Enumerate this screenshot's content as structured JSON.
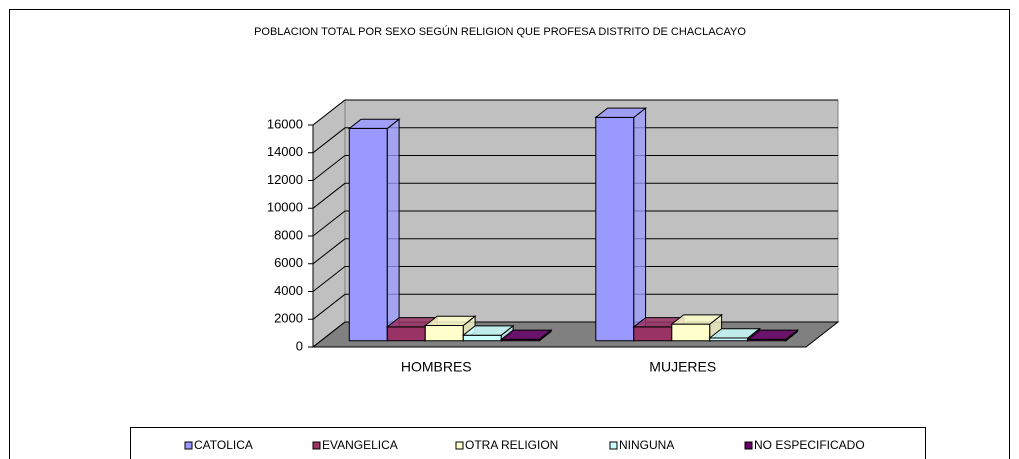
{
  "chart_data": {
    "type": "bar3d",
    "title": "POBLACION TOTAL POR SEXO SEGÚN RELIGION QUE PROFESA DISTRITO DE CHACLACAYO",
    "categories": [
      "HOMBRES",
      "MUJERES"
    ],
    "series": [
      {
        "name": "CATOLICA",
        "color": "#9999ff",
        "values": [
          15300,
          16100
        ]
      },
      {
        "name": "EVANGELICA",
        "color": "#993366",
        "values": [
          1000,
          1000
        ]
      },
      {
        "name": "OTRA RELIGION",
        "color": "#ffffcc",
        "values": [
          1100,
          1200
        ]
      },
      {
        "name": "NINGUNA",
        "color": "#ccffff",
        "values": [
          400,
          200
        ]
      },
      {
        "name": "NO ESPECIFICADO",
        "color": "#660066",
        "values": [
          100,
          100
        ]
      }
    ],
    "ylim": [
      0,
      16000
    ],
    "yticks": [
      0,
      2000,
      4000,
      6000,
      8000,
      10000,
      12000,
      14000,
      16000
    ],
    "grid": true,
    "legend": "bottom"
  }
}
